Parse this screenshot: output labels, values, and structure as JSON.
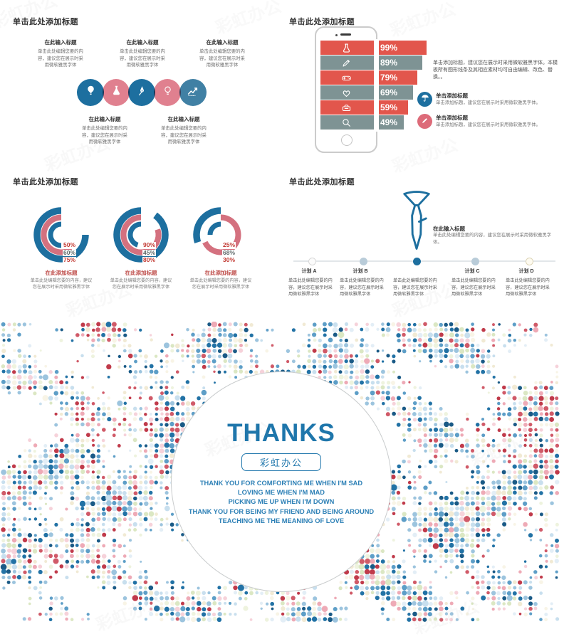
{
  "page": {
    "bg": "#ffffff"
  },
  "colors": {
    "blue": "#1d6f9f",
    "steel_blue": "#4080a4",
    "pink": "#e0808f",
    "bar_red": "#e2564c",
    "bar_teal": "#7e9394",
    "donut_blue": "#1d6f9f",
    "donut_pink": "#d4717f",
    "label_red": "#c23a33",
    "label_gray": "#5f6a6a",
    "thanks_blue": "#1e76ab",
    "lines_blue": "#2d80b6",
    "timeline_line": "#e2e6e9",
    "node_active": "#1d6f9f",
    "node_light": "#b9ccd9"
  },
  "watermark": {
    "text": "彩虹办公"
  },
  "slides": {
    "process": {
      "title": "单击此处添加标题",
      "icons": [
        "balloon-icon",
        "flask-icon",
        "pen-nib-icon",
        "bulb-icon",
        "chart-up-icon"
      ],
      "top_items": [
        {
          "heading": "在此输入标题",
          "body": "单击此处编辑您要的内容，建议您在展示时采用微软雅黑字体"
        },
        {
          "heading": "在此输入标题",
          "body": "单击此处编辑您要的内容，建议您在展示时采用微软雅黑字体"
        },
        {
          "heading": "在此输入标题",
          "body": "单击此处编辑您要的内容，建议您在展示时采用微软雅黑字体"
        }
      ],
      "bottom_items": [
        {
          "heading": "在此输入标题",
          "body": "单击此处编辑您要的内容，建议您在展示时采用微软雅黑字体"
        },
        {
          "heading": "在此输入标题",
          "body": "单击此处编辑您要的内容，建议您在展示时采用微软雅黑字体"
        }
      ]
    },
    "phone": {
      "title": "单击此处添加标题",
      "bars": [
        {
          "icon": "flask-icon",
          "label": "99%",
          "pct": 99,
          "color": "#e2564c"
        },
        {
          "icon": "pencil-icon",
          "label": "89%",
          "pct": 89,
          "color": "#7e9394"
        },
        {
          "icon": "gamepad-icon",
          "label": "79%",
          "pct": 79,
          "color": "#e2564c"
        },
        {
          "icon": "heart-icon",
          "label": "69%",
          "pct": 69,
          "color": "#7e9394"
        },
        {
          "icon": "toaster-icon",
          "label": "59%",
          "pct": 59,
          "color": "#e2564c"
        },
        {
          "icon": "search-icon",
          "label": "49%",
          "pct": 49,
          "color": "#7e9394"
        }
      ],
      "side_paragraph": "单击添加标题，建议您在展示时采用微软雅黑字体。本模板所有图形线条及其相应素材均可自由编辑、改色、替换。。",
      "features": [
        {
          "icon": "umbrella-icon",
          "color": "#1d6f9f",
          "heading": "单击添加标题",
          "body": "单击添加标题，建议您在展示时采用微软雅黑字体。"
        },
        {
          "icon": "pencil-icon",
          "color": "#dd6b79",
          "heading": "单击添加标题",
          "body": "单击添加标题，建议您在展示时采用微软雅黑字体。"
        }
      ]
    },
    "donuts": {
      "title": "单击此处添加标题",
      "charts": [
        {
          "labels": [
            "50%",
            "60%",
            "75%"
          ],
          "arcs": {
            "inner": 50,
            "middle": 60,
            "outer": 75,
            "middle_dir": "ccw"
          },
          "caption": "在此添加标题",
          "body": "单击此处编辑您要的内容，建议您在展示时采用微软雅黑字体"
        },
        {
          "labels": [
            "90%",
            "45%",
            "80%"
          ],
          "arcs": {
            "inner": 45,
            "middle": 80,
            "outer": 90,
            "middle_dir": "ccw"
          },
          "caption": "在此添加标题",
          "body": "单击此处编辑您要的内容，建议您在展示时采用微软雅黑字体"
        },
        {
          "labels": [
            "25%",
            "68%",
            "30%"
          ],
          "arcs": {
            "inner": 25,
            "middle": 68,
            "outer": 30,
            "middle_dir": "cw"
          },
          "caption": "在此添加标题",
          "body": "单击此处编辑您要的内容，建议您在展示时采用微软雅黑字体"
        }
      ]
    },
    "timeline": {
      "title": "单击此处添加标题",
      "tie_heading": "在此输入标题",
      "tie_body": "单击此处编辑您要的内容，建议您在展示时采用微软雅黑字体。",
      "items": [
        {
          "label": "计划 A",
          "body": "单击此处编辑您要的内容，建议您在展示时采用微软雅黑字体"
        },
        {
          "label": "计划 B",
          "body": "单击此处编辑您要的内容，建议您在展示时采用微软雅黑字体"
        },
        {
          "label": "",
          "body": "单击此处编辑您要的内容，建议您在展示时采用微软雅黑字体"
        },
        {
          "label": "计划 C",
          "body": "单击此处编辑您要的内容，建议您在展示时采用微软雅黑字体"
        },
        {
          "label": "计划 D",
          "body": "单击此处编辑您要的内容，建议您在展示时采用微软雅黑字体"
        }
      ]
    },
    "thanks": {
      "word": "THANKS",
      "badge": "彩虹办公",
      "lines": [
        "THANK YOU FOR COMFORTING ME WHEN I'M SAD",
        "LOVING ME WHEN I'M MAD",
        "PICKING ME UP WHEN I'M DOWN",
        "THANK YOU FOR BEING MY FRIEND AND BEING AROUND",
        "TEACHING ME THE MEANING OF LOVE"
      ]
    }
  },
  "chart_data": [
    {
      "type": "bar",
      "orientation": "horizontal",
      "title": "单击此处添加标题",
      "categories": [
        "flask",
        "pencil",
        "gamepad",
        "heart",
        "toaster",
        "search"
      ],
      "values": [
        99,
        89,
        79,
        69,
        59,
        49
      ],
      "unit": "%",
      "colors_alternate": [
        "#e2564c",
        "#7e9394"
      ]
    },
    {
      "type": "donut",
      "title": "单击此处添加标题",
      "unit": "%",
      "series": [
        {
          "name": "chart-1",
          "values": [
            50,
            60,
            75
          ]
        },
        {
          "name": "chart-2",
          "values": [
            90,
            45,
            80
          ]
        },
        {
          "name": "chart-3",
          "values": [
            25,
            68,
            30
          ]
        }
      ]
    }
  ]
}
